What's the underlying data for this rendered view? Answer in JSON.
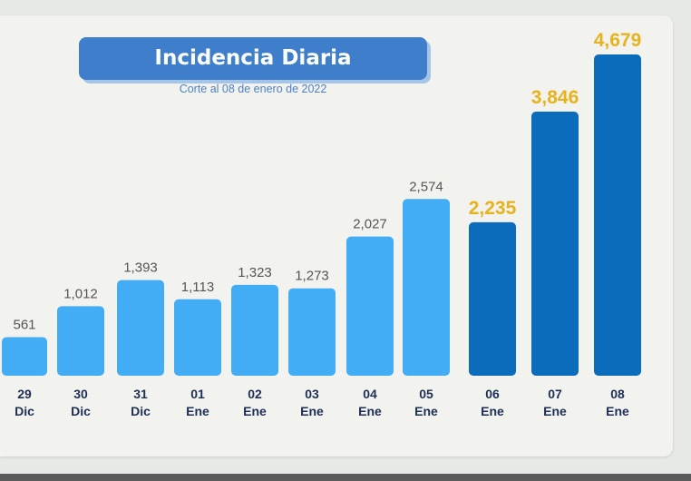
{
  "chart_data": {
    "type": "bar",
    "title": "Incidencia Diaria",
    "subtitle": "Corte al 08 de enero de 2022",
    "categories": [
      [
        "29",
        "Dic"
      ],
      [
        "30",
        "Dic"
      ],
      [
        "31",
        "Dic"
      ],
      [
        "01",
        "Ene"
      ],
      [
        "02",
        "Ene"
      ],
      [
        "03",
        "Ene"
      ],
      [
        "04",
        "Ene"
      ],
      [
        "05",
        "Ene"
      ],
      [
        "06",
        "Ene"
      ],
      [
        "07",
        "Ene"
      ],
      [
        "08",
        "Ene"
      ]
    ],
    "values": [
      561,
      1012,
      1393,
      1113,
      1323,
      1273,
      2027,
      2574,
      2235,
      3846,
      4679
    ],
    "value_labels": [
      "561",
      "1,012",
      "1,393",
      "1,113",
      "1,323",
      "1,273",
      "2,027",
      "2,574",
      "2,235",
      "3,846",
      "4,679"
    ],
    "highlighted": [
      false,
      false,
      false,
      false,
      false,
      false,
      false,
      false,
      true,
      true,
      true
    ],
    "ylim": [
      0,
      4679
    ],
    "xlabel": "",
    "ylabel": "",
    "grid": false,
    "colors": {
      "bar": "#42adf4",
      "bar_highlight": "#0a6cbb",
      "label": "#555555",
      "label_highlight": "#e8b21c",
      "category": "#1e2f55"
    }
  }
}
